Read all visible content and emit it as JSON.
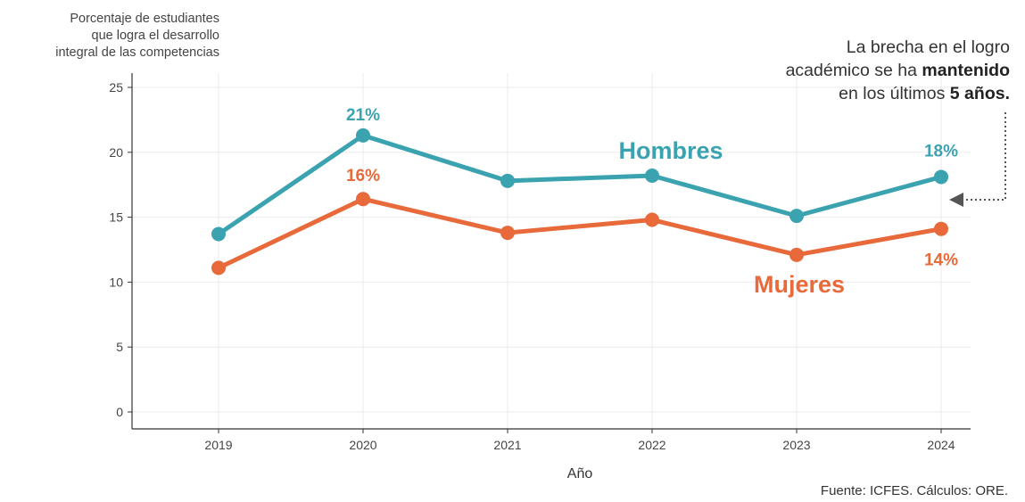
{
  "chart_data": {
    "type": "line",
    "ylabel_lines": [
      "Porcentaje de estudiantes",
      "que logra el desarrollo",
      "integral de las competencias"
    ],
    "xlabel": "Año",
    "categories": [
      "2019",
      "2020",
      "2021",
      "2022",
      "2023",
      "2024"
    ],
    "y_ticks": [
      "0",
      "5",
      "10",
      "15",
      "20",
      "25"
    ],
    "ylim": [
      0,
      25
    ],
    "grid": true,
    "series": [
      {
        "name": "Hombres",
        "color": "#3ba3b0",
        "values": [
          13.7,
          21.3,
          17.8,
          18.2,
          15.1,
          18.1
        ],
        "point_labels": [
          {
            "index": 1,
            "text": "21%"
          },
          {
            "index": 5,
            "text": "18%"
          }
        ]
      },
      {
        "name": "Mujeres",
        "color": "#e8693a",
        "values": [
          11.1,
          16.4,
          13.8,
          14.8,
          12.1,
          14.1
        ],
        "point_labels": [
          {
            "index": 1,
            "text": "16%"
          },
          {
            "index": 5,
            "text": "14%"
          }
        ]
      }
    ]
  },
  "annotation": {
    "line1": "La brecha en el logro",
    "line2_pre": "académico se ha ",
    "line2_bold": "mantenido",
    "line3_pre": "en los últimos ",
    "line3_bold": "5 años."
  },
  "source": "Fuente: ICFES. Cálculos: ORE."
}
